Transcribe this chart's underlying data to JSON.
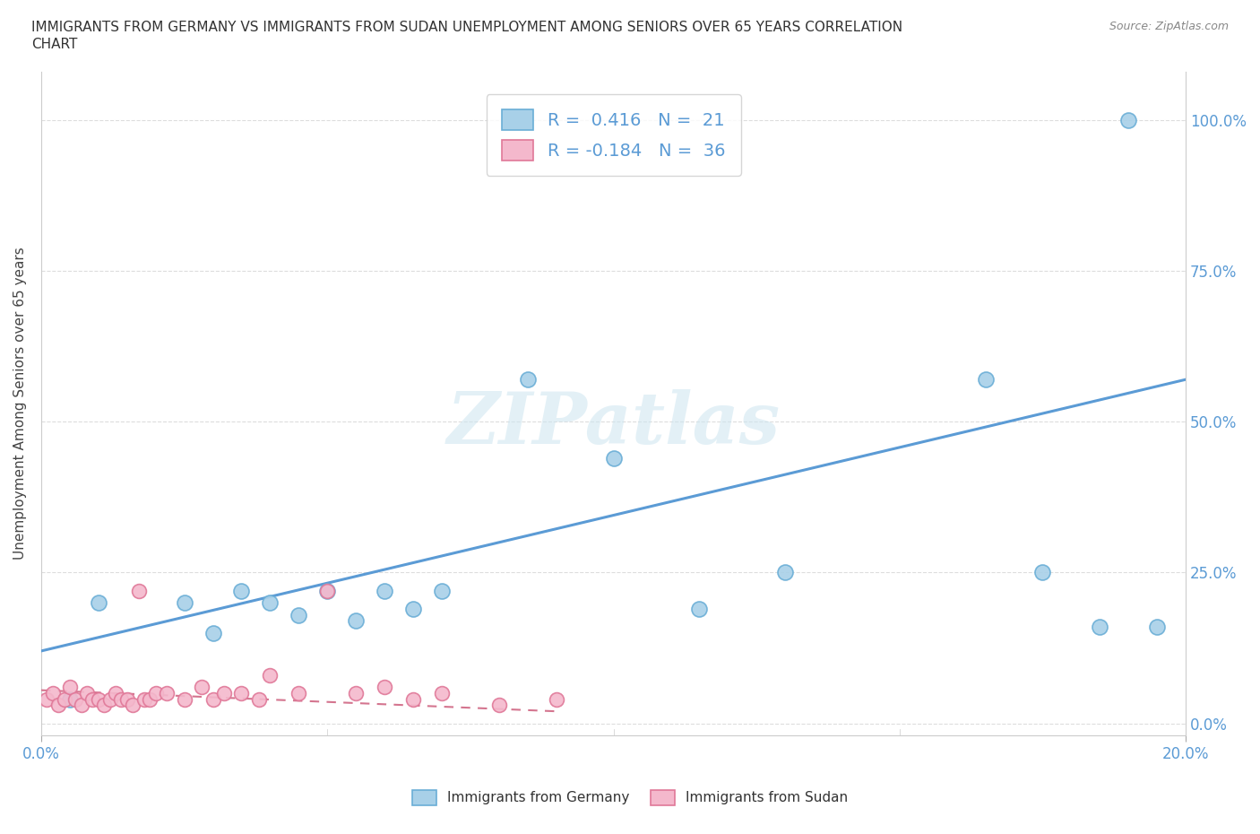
{
  "title_line1": "IMMIGRANTS FROM GERMANY VS IMMIGRANTS FROM SUDAN UNEMPLOYMENT AMONG SENIORS OVER 65 YEARS CORRELATION",
  "title_line2": "CHART",
  "source": "Source: ZipAtlas.com",
  "ylabel": "Unemployment Among Seniors over 65 years",
  "ytick_labels": [
    "0.0%",
    "25.0%",
    "50.0%",
    "75.0%",
    "100.0%"
  ],
  "ytick_values": [
    0,
    0.25,
    0.5,
    0.75,
    1.0
  ],
  "xtick_labels": [
    "0.0%",
    "20.0%"
  ],
  "xlim": [
    0,
    0.2
  ],
  "ylim": [
    -0.02,
    1.08
  ],
  "germany_label": "Immigrants from Germany",
  "sudan_label": "Immigrants from Sudan",
  "germany_R": "0.416",
  "germany_N": "21",
  "sudan_R": "-0.184",
  "sudan_N": "36",
  "germany_color": "#a8d0e8",
  "sudan_color": "#f4b8cc",
  "germany_edge_color": "#6aaed6",
  "sudan_edge_color": "#e07898",
  "germany_line_color": "#5b9bd5",
  "sudan_line_color": "#d4758f",
  "tick_color": "#5b9bd5",
  "watermark": "ZIPatlas",
  "germany_x": [
    0.005,
    0.01,
    0.025,
    0.03,
    0.035,
    0.04,
    0.045,
    0.05,
    0.055,
    0.06,
    0.065,
    0.07,
    0.085,
    0.1,
    0.115,
    0.13,
    0.165,
    0.175,
    0.185,
    0.19,
    0.195
  ],
  "germany_y": [
    0.04,
    0.2,
    0.2,
    0.15,
    0.22,
    0.2,
    0.18,
    0.22,
    0.17,
    0.22,
    0.19,
    0.22,
    0.57,
    0.44,
    0.19,
    0.25,
    0.57,
    0.25,
    0.16,
    1.0,
    0.16
  ],
  "sudan_x": [
    0.001,
    0.002,
    0.003,
    0.004,
    0.005,
    0.006,
    0.007,
    0.008,
    0.009,
    0.01,
    0.011,
    0.012,
    0.013,
    0.014,
    0.015,
    0.016,
    0.017,
    0.018,
    0.019,
    0.02,
    0.022,
    0.025,
    0.028,
    0.03,
    0.032,
    0.035,
    0.038,
    0.04,
    0.045,
    0.05,
    0.055,
    0.06,
    0.065,
    0.07,
    0.08,
    0.09
  ],
  "sudan_y": [
    0.04,
    0.05,
    0.03,
    0.04,
    0.06,
    0.04,
    0.03,
    0.05,
    0.04,
    0.04,
    0.03,
    0.04,
    0.05,
    0.04,
    0.04,
    0.03,
    0.22,
    0.04,
    0.04,
    0.05,
    0.05,
    0.04,
    0.06,
    0.04,
    0.05,
    0.05,
    0.04,
    0.08,
    0.05,
    0.22,
    0.05,
    0.06,
    0.04,
    0.05,
    0.03,
    0.04
  ],
  "germany_trendline_x": [
    0.0,
    0.2
  ],
  "germany_trendline_y": [
    0.12,
    0.57
  ],
  "sudan_trendline_x": [
    0.0,
    0.09
  ],
  "sudan_trendline_y": [
    0.055,
    0.02
  ],
  "legend_R_color": "#000000",
  "legend_val_color": "#5b9bd5",
  "grid_color": "#dddddd",
  "spine_color": "#cccccc"
}
